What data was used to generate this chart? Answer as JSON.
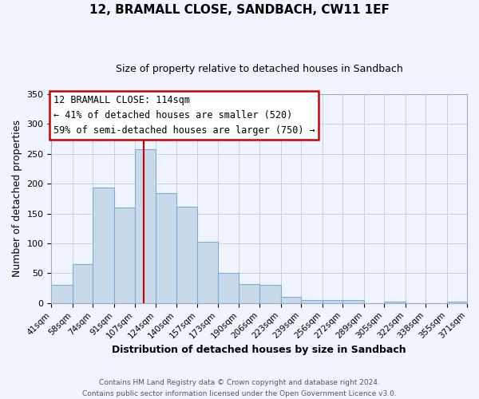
{
  "title": "12, BRAMALL CLOSE, SANDBACH, CW11 1EF",
  "subtitle": "Size of property relative to detached houses in Sandbach",
  "xlabel": "Distribution of detached houses by size in Sandbach",
  "ylabel": "Number of detached properties",
  "bin_edges": [
    41,
    58,
    74,
    91,
    107,
    124,
    140,
    157,
    173,
    190,
    206,
    223,
    239,
    256,
    272,
    289,
    305,
    322,
    338,
    355,
    371
  ],
  "bar_heights": [
    30,
    65,
    193,
    160,
    258,
    184,
    162,
    103,
    50,
    32,
    30,
    11,
    5,
    5,
    5,
    0,
    2,
    0,
    0,
    2
  ],
  "bar_color": "#c8d9ea",
  "bar_edge_color": "#7bafd4",
  "property_line_x": 114,
  "annotation_title": "12 BRAMALL CLOSE: 114sqm",
  "annotation_line1": "← 41% of detached houses are smaller (520)",
  "annotation_line2": "59% of semi-detached houses are larger (750) →",
  "annotation_box_color": "#ffffff",
  "annotation_box_edge_color": "#cc0000",
  "vline_color": "#cc0000",
  "ylim": [
    0,
    350
  ],
  "yticks": [
    0,
    50,
    100,
    150,
    200,
    250,
    300,
    350
  ],
  "footer1": "Contains HM Land Registry data © Crown copyright and database right 2024.",
  "footer2": "Contains public sector information licensed under the Open Government Licence v3.0.",
  "bg_color": "#f0f4ff",
  "grid_color": "#c5cfe8",
  "title_fontsize": 11,
  "subtitle_fontsize": 9,
  "axis_label_fontsize": 9,
  "tick_fontsize": 7.5,
  "annotation_fontsize": 8.5,
  "footer_fontsize": 6.5
}
